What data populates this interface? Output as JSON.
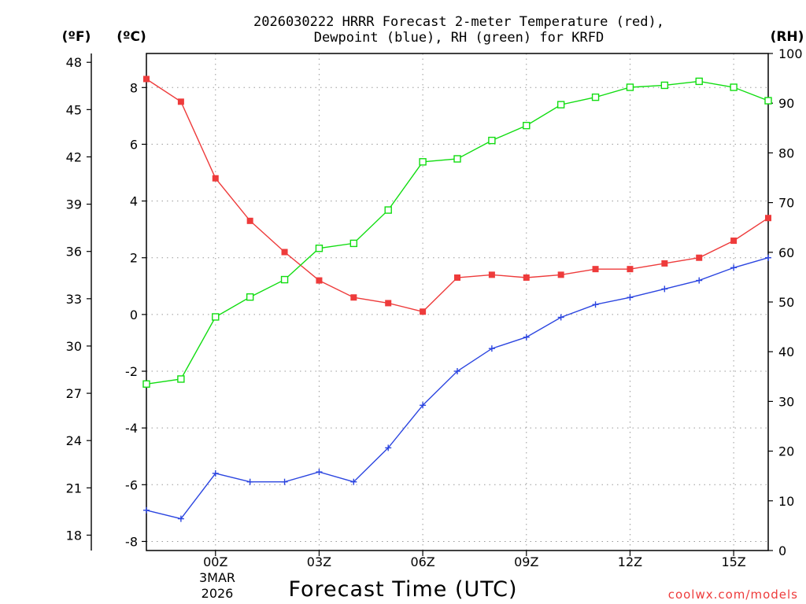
{
  "chart_data": {
    "type": "line",
    "title_line1": "2026030222 HRRR Forecast 2-meter Temperature (red),",
    "title_line2": "Dewpoint (blue), RH (green) for KRFD",
    "xlabel": "Forecast Time (UTC)",
    "date_day": "3MAR",
    "date_year": "2026",
    "credit": "coolwx.com/models",
    "units": {
      "f": "(ºF)",
      "c": "(ºC)",
      "rh": "(RH)"
    },
    "x_ticks": [
      {
        "hour": 2,
        "label": "00Z"
      },
      {
        "hour": 5,
        "label": "03Z"
      },
      {
        "hour": 8,
        "label": "06Z"
      },
      {
        "hour": 11,
        "label": "09Z"
      },
      {
        "hour": 14,
        "label": "12Z"
      },
      {
        "hour": 17,
        "label": "15Z"
      }
    ],
    "xlim": [
      0,
      18
    ],
    "ylim_c": [
      -8.32,
      9.2
    ],
    "yticks_c": [
      "-8",
      "-6",
      "-4",
      "-2",
      "0",
      "2",
      "4",
      "6",
      "8"
    ],
    "yticks_f": [
      "18",
      "21",
      "24",
      "27",
      "30",
      "33",
      "36",
      "39",
      "42",
      "45",
      "48"
    ],
    "ylim_rh": [
      0,
      100
    ],
    "yticks_rh": [
      "0",
      "10",
      "20",
      "30",
      "40",
      "50",
      "60",
      "70",
      "80",
      "90",
      "100"
    ],
    "colors": {
      "temperature": "#ee3b3b",
      "dewpoint": "#2b45e0",
      "rh": "#11dd11"
    },
    "series": [
      {
        "name": "Temperature",
        "axis": "c",
        "marker": "filled-square",
        "values": [
          8.3,
          7.5,
          4.8,
          3.3,
          2.2,
          1.2,
          0.6,
          0.4,
          0.1,
          1.3,
          1.4,
          1.3,
          1.4,
          1.6,
          1.6,
          1.8,
          2.0,
          2.6,
          3.4
        ]
      },
      {
        "name": "Dewpoint",
        "axis": "c",
        "marker": "plus",
        "values": [
          -6.9,
          -7.2,
          -5.6,
          -5.9,
          -5.9,
          -5.55,
          -5.9,
          -4.7,
          -3.2,
          -2.0,
          -1.2,
          -0.8,
          -0.1,
          0.35,
          0.6,
          0.9,
          1.2,
          1.65,
          2.0
        ]
      },
      {
        "name": "RH",
        "axis": "rh",
        "marker": "open-square",
        "values": [
          33.5,
          34.5,
          47,
          51,
          54.5,
          60.8,
          61.8,
          68.5,
          78.2,
          78.8,
          82.5,
          85.5,
          89.7,
          91.2,
          93.2,
          93.6,
          94.4,
          93.2,
          90.5
        ]
      }
    ]
  }
}
